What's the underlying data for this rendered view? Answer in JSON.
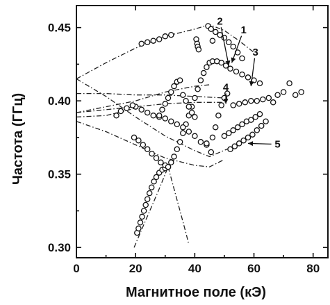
{
  "chart_data": {
    "type": "scatter",
    "xlabel": "Магнитное поле (кЭ)",
    "ylabel": "Частота (ГГц)",
    "xlim": [
      0,
      85
    ],
    "ylim": [
      0.293,
      0.465
    ],
    "x_ticks": [
      0,
      20,
      40,
      60,
      80
    ],
    "y_ticks": [
      0.3,
      0.35,
      0.4,
      0.45
    ],
    "x_tick_labels": [
      "0",
      "20",
      "40",
      "60",
      "80"
    ],
    "y_tick_labels": [
      "0.30",
      "0.35",
      "0.40",
      "0.45"
    ],
    "grid": false,
    "legend": false,
    "series": [
      {
        "points": [
          [
            20.5,
            0.31
          ],
          [
            21,
            0.313
          ],
          [
            21.6,
            0.317
          ],
          [
            22.2,
            0.321
          ],
          [
            22.8,
            0.325
          ],
          [
            23.4,
            0.329
          ],
          [
            24,
            0.333
          ],
          [
            24.7,
            0.337
          ],
          [
            25.4,
            0.341
          ],
          [
            26.2,
            0.345
          ],
          [
            27,
            0.348
          ],
          [
            28,
            0.351
          ],
          [
            29,
            0.353
          ],
          [
            30,
            0.354
          ],
          [
            31,
            0.355
          ]
        ]
      },
      {
        "points": [
          [
            31,
            0.355
          ],
          [
            32,
            0.358
          ],
          [
            33,
            0.362
          ],
          [
            34,
            0.367
          ],
          [
            35,
            0.372
          ],
          [
            36,
            0.378
          ],
          [
            37,
            0.384
          ],
          [
            38,
            0.39
          ],
          [
            39,
            0.396
          ],
          [
            40,
            0.402
          ],
          [
            41,
            0.408
          ],
          [
            42,
            0.414
          ],
          [
            43,
            0.419
          ],
          [
            44,
            0.423
          ],
          [
            45,
            0.426
          ],
          [
            46,
            0.427
          ],
          [
            47.5,
            0.427
          ],
          [
            49,
            0.426
          ],
          [
            50.5,
            0.424
          ],
          [
            52,
            0.422
          ],
          [
            54,
            0.42
          ],
          [
            56,
            0.418
          ],
          [
            58,
            0.416
          ],
          [
            60,
            0.414
          ],
          [
            62,
            0.412
          ]
        ]
      },
      {
        "points": [
          [
            19.5,
            0.375
          ],
          [
            21,
            0.373
          ],
          [
            22.5,
            0.37
          ],
          [
            24,
            0.367
          ],
          [
            25.5,
            0.364
          ],
          [
            27,
            0.361
          ],
          [
            28.5,
            0.358
          ],
          [
            30,
            0.356
          ],
          [
            31,
            0.355
          ]
        ]
      },
      {
        "points": [
          [
            20,
            0.396
          ],
          [
            22,
            0.394
          ],
          [
            24,
            0.392
          ],
          [
            26,
            0.39
          ],
          [
            28,
            0.389
          ],
          [
            30,
            0.388
          ],
          [
            32,
            0.386
          ],
          [
            34,
            0.384
          ],
          [
            36,
            0.382
          ],
          [
            38,
            0.379
          ],
          [
            40,
            0.376
          ],
          [
            42,
            0.372
          ],
          [
            44,
            0.37
          ],
          [
            46,
            0.375
          ],
          [
            47,
            0.382
          ],
          [
            48,
            0.39
          ],
          [
            49,
            0.397
          ],
          [
            50,
            0.402
          ],
          [
            51,
            0.405
          ]
        ]
      },
      {
        "points": [
          [
            28,
            0.39
          ],
          [
            29,
            0.394
          ],
          [
            30,
            0.398
          ],
          [
            31,
            0.402
          ],
          [
            32,
            0.406
          ],
          [
            33,
            0.41
          ],
          [
            34,
            0.413
          ],
          [
            35,
            0.414
          ]
        ]
      },
      {
        "points": [
          [
            36,
            0.404
          ],
          [
            37,
            0.4
          ],
          [
            38,
            0.396
          ],
          [
            39,
            0.392
          ],
          [
            40,
            0.389
          ]
        ]
      },
      {
        "points": [
          [
            44,
            0.371
          ],
          [
            45.5,
            0.365
          ]
        ]
      },
      {
        "points": [
          [
            22,
            0.439
          ],
          [
            24,
            0.44
          ],
          [
            26,
            0.441
          ],
          [
            28,
            0.442
          ],
          [
            30,
            0.444
          ],
          [
            32,
            0.445
          ]
        ]
      },
      {
        "points": [
          [
            40.5,
            0.442
          ],
          [
            40.8,
            0.439
          ],
          [
            41,
            0.437
          ],
          [
            41.3,
            0.435
          ],
          [
            44.5,
            0.451
          ],
          [
            45.5,
            0.449
          ],
          [
            47,
            0.447
          ],
          [
            48.5,
            0.445
          ],
          [
            50,
            0.443
          ],
          [
            51.5,
            0.44
          ],
          [
            53,
            0.437
          ],
          [
            54.5,
            0.433
          ],
          [
            56,
            0.429
          ]
        ]
      },
      {
        "points": [
          [
            13.5,
            0.39
          ],
          [
            15,
            0.393
          ],
          [
            17,
            0.395
          ],
          [
            19,
            0.397
          ]
        ]
      },
      {
        "points": [
          [
            50,
            0.376
          ],
          [
            51.5,
            0.378
          ],
          [
            53,
            0.38
          ],
          [
            54.5,
            0.382
          ],
          [
            56,
            0.384
          ],
          [
            57.5,
            0.386
          ],
          [
            59,
            0.387
          ],
          [
            60.5,
            0.389
          ],
          [
            62,
            0.391
          ]
        ]
      },
      {
        "points": [
          [
            52,
            0.367
          ],
          [
            53.5,
            0.369
          ],
          [
            55,
            0.371
          ],
          [
            56.5,
            0.373
          ],
          [
            58,
            0.375
          ],
          [
            59.5,
            0.377
          ],
          [
            61,
            0.38
          ],
          [
            62.5,
            0.383
          ],
          [
            64,
            0.386
          ]
        ]
      },
      {
        "points": [
          [
            53,
            0.397
          ],
          [
            55,
            0.398
          ],
          [
            57,
            0.399
          ],
          [
            59,
            0.4
          ],
          [
            61,
            0.4
          ],
          [
            63,
            0.401
          ],
          [
            65,
            0.402
          ],
          [
            66.5,
            0.399
          ],
          [
            68,
            0.404
          ],
          [
            70,
            0.406
          ],
          [
            72,
            0.412
          ],
          [
            74,
            0.404
          ],
          [
            76,
            0.406
          ]
        ]
      },
      {
        "points": [
          [
            46,
            0.441
          ]
        ]
      }
    ],
    "fit_curves": [
      {
        "points": [
          [
            0,
            0.415
          ],
          [
            10,
            0.426
          ],
          [
            20,
            0.436
          ],
          [
            30,
            0.444
          ],
          [
            40,
            0.449
          ],
          [
            45,
            0.452
          ],
          [
            50,
            0.448
          ],
          [
            55,
            0.441
          ],
          [
            60,
            0.433
          ]
        ]
      },
      {
        "points": [
          [
            0,
            0.415
          ],
          [
            10,
            0.403
          ],
          [
            20,
            0.389
          ],
          [
            30,
            0.376
          ],
          [
            40,
            0.366
          ],
          [
            45,
            0.362
          ],
          [
            52,
            0.368
          ]
        ]
      },
      {
        "points": [
          [
            0,
            0.392
          ],
          [
            10,
            0.396
          ],
          [
            20,
            0.4
          ],
          [
            30,
            0.406
          ],
          [
            40,
            0.41
          ],
          [
            45,
            0.411
          ]
        ]
      },
      {
        "points": [
          [
            0,
            0.386
          ],
          [
            10,
            0.379
          ],
          [
            20,
            0.37
          ],
          [
            30,
            0.361
          ],
          [
            40,
            0.356
          ],
          [
            45,
            0.355
          ],
          [
            50,
            0.36
          ]
        ]
      },
      {
        "points": [
          [
            0,
            0.392
          ],
          [
            10,
            0.394
          ],
          [
            20,
            0.396
          ],
          [
            30,
            0.398
          ],
          [
            40,
            0.399
          ],
          [
            50,
            0.399
          ]
        ]
      },
      {
        "points": [
          [
            0,
            0.389
          ],
          [
            10,
            0.39
          ],
          [
            20,
            0.395
          ]
        ]
      },
      {
        "points": [
          [
            0,
            0.405
          ],
          [
            10,
            0.405
          ],
          [
            20,
            0.404
          ],
          [
            30,
            0.404
          ],
          [
            40,
            0.403
          ],
          [
            50,
            0.402
          ]
        ]
      },
      {
        "points": [
          [
            19.5,
            0.3
          ],
          [
            22,
            0.312
          ],
          [
            25,
            0.326
          ],
          [
            28,
            0.34
          ],
          [
            31,
            0.355
          ]
        ]
      },
      {
        "points": [
          [
            31,
            0.355
          ],
          [
            33,
            0.34
          ],
          [
            35,
            0.325
          ],
          [
            37,
            0.31
          ],
          [
            38,
            0.302
          ]
        ]
      }
    ],
    "annotations": [
      {
        "text": "1",
        "x": 56.5,
        "y": 0.446,
        "arrow_to": [
          52.5,
          0.426
        ]
      },
      {
        "text": "2",
        "x": 48.5,
        "y": 0.452,
        "arrow_to": [
          51.5,
          0.424
        ]
      },
      {
        "text": "3",
        "x": 60.5,
        "y": 0.431,
        "arrow_to": [
          59,
          0.41
        ]
      },
      {
        "text": "4",
        "x": 50.5,
        "y": 0.407,
        "arrow_to": [
          50.5,
          0.398
        ]
      },
      {
        "text": "5",
        "x": 68,
        "y": 0.368,
        "arrow_to": [
          58,
          0.371
        ]
      }
    ]
  }
}
